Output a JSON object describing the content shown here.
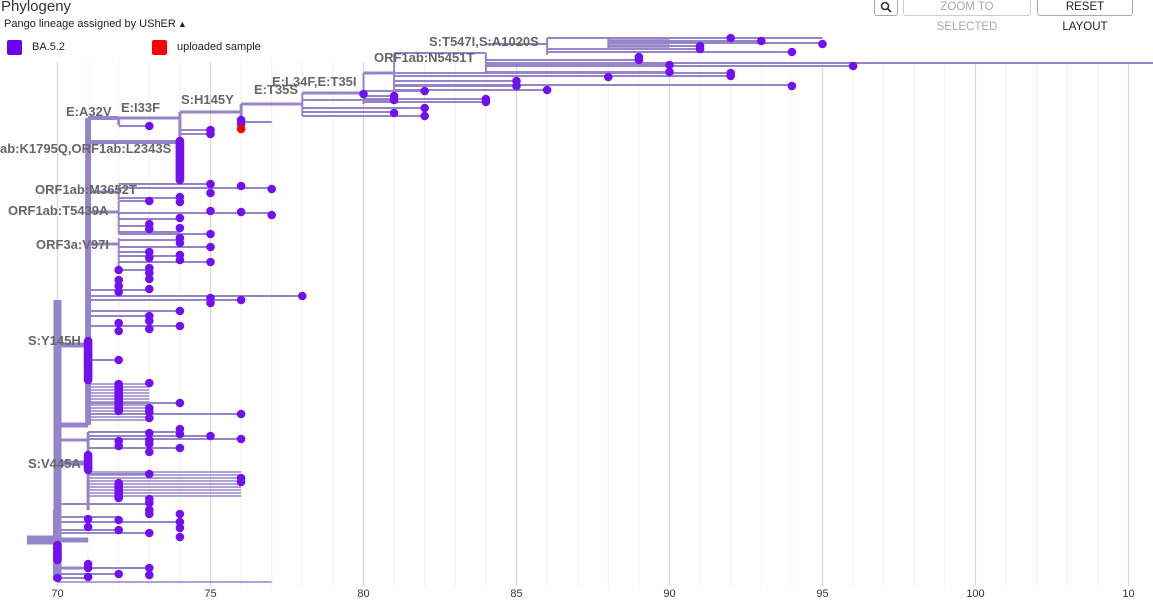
{
  "panel": {
    "title": "Phylogeny",
    "color_by_label": "Pango lineage assigned by UShER"
  },
  "toolbar": {
    "zoom_to_selected": "ZOOM TO SELECTED",
    "reset_layout": "RESET LAYOUT",
    "search_icon": "magnifier-icon"
  },
  "legend": [
    {
      "label": "BA.5.2",
      "color": "#6a00ee"
    },
    {
      "label": "uploaded sample",
      "color": "#ff0000"
    }
  ],
  "colors": {
    "branch": "#9484c8",
    "node": "#7310f0",
    "highlight": "#ff0000",
    "grid": "#e2e2e2"
  },
  "axis": {
    "ticks": [
      "70",
      "75",
      "80",
      "85",
      "90",
      "95",
      "100",
      "10"
    ]
  },
  "mutation_labels": [
    "S:T547I,S:A1020S",
    "ORF1ab:N5451T",
    "E:L34F,E:T35I",
    "E:T35S",
    "S:H145Y",
    "E:I33F",
    "E:A32V",
    "ab:K1795Q,ORF1ab:L2343S",
    "ORF1ab:M3652T",
    "ORF1ab:T5439A",
    "ORF3a:V97I",
    "S:Y145H",
    "S:V445A"
  ]
}
